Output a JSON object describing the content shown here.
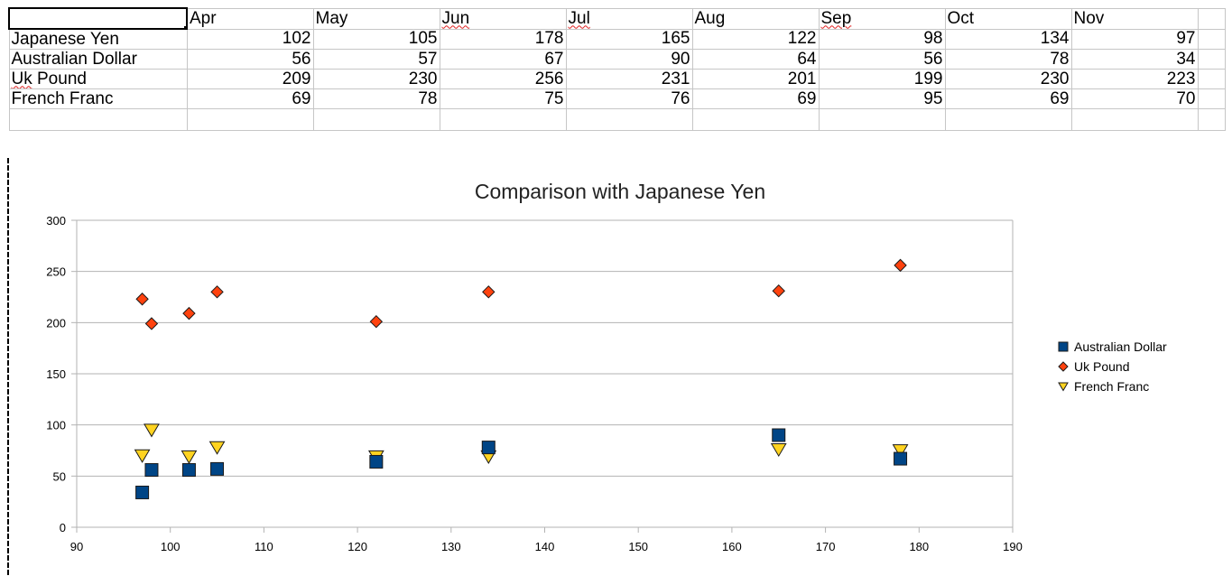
{
  "spreadsheet": {
    "header_row": [
      "",
      "Apr",
      "May",
      "Jun",
      "Jul",
      "Aug",
      "Sep",
      "Oct",
      "Nov",
      ""
    ],
    "rows": [
      {
        "label": "Japanese Yen",
        "values": [
          "102",
          "105",
          "178",
          "165",
          "122",
          "98",
          "134",
          "97"
        ]
      },
      {
        "label": "Australian Dollar",
        "values": [
          "56",
          "57",
          "67",
          "90",
          "64",
          "56",
          "78",
          "34"
        ]
      },
      {
        "label": "Uk Pound",
        "values": [
          "209",
          "230",
          "256",
          "231",
          "201",
          "199",
          "230",
          "223"
        ]
      },
      {
        "label": "French Franc",
        "values": [
          "69",
          "78",
          "75",
          "76",
          "69",
          "95",
          "69",
          "70"
        ]
      }
    ]
  },
  "chart_data": {
    "type": "scatter",
    "title": "Comparison with Japanese Yen",
    "xlabel": "",
    "ylabel": "",
    "xlim": [
      90,
      190
    ],
    "ylim": [
      0,
      300
    ],
    "xticks": [
      "90",
      "100",
      "110",
      "120",
      "130",
      "140",
      "150",
      "160",
      "170",
      "180",
      "190"
    ],
    "yticks": [
      "0",
      "50",
      "100",
      "150",
      "200",
      "250",
      "300"
    ],
    "grid": "horizontal",
    "legend_position": "right",
    "x": [
      102,
      105,
      178,
      165,
      122,
      98,
      134,
      97
    ],
    "series": [
      {
        "name": "Australian Dollar",
        "marker": "square",
        "color": "#004586",
        "values": [
          56,
          57,
          67,
          90,
          64,
          56,
          78,
          34
        ]
      },
      {
        "name": "Uk Pound",
        "marker": "diamond",
        "color": "#ff420e",
        "values": [
          209,
          230,
          256,
          231,
          201,
          199,
          230,
          223
        ]
      },
      {
        "name": "French Franc",
        "marker": "triangle-down",
        "color": "#ffd320",
        "values": [
          69,
          78,
          75,
          76,
          69,
          95,
          69,
          70
        ]
      }
    ]
  }
}
